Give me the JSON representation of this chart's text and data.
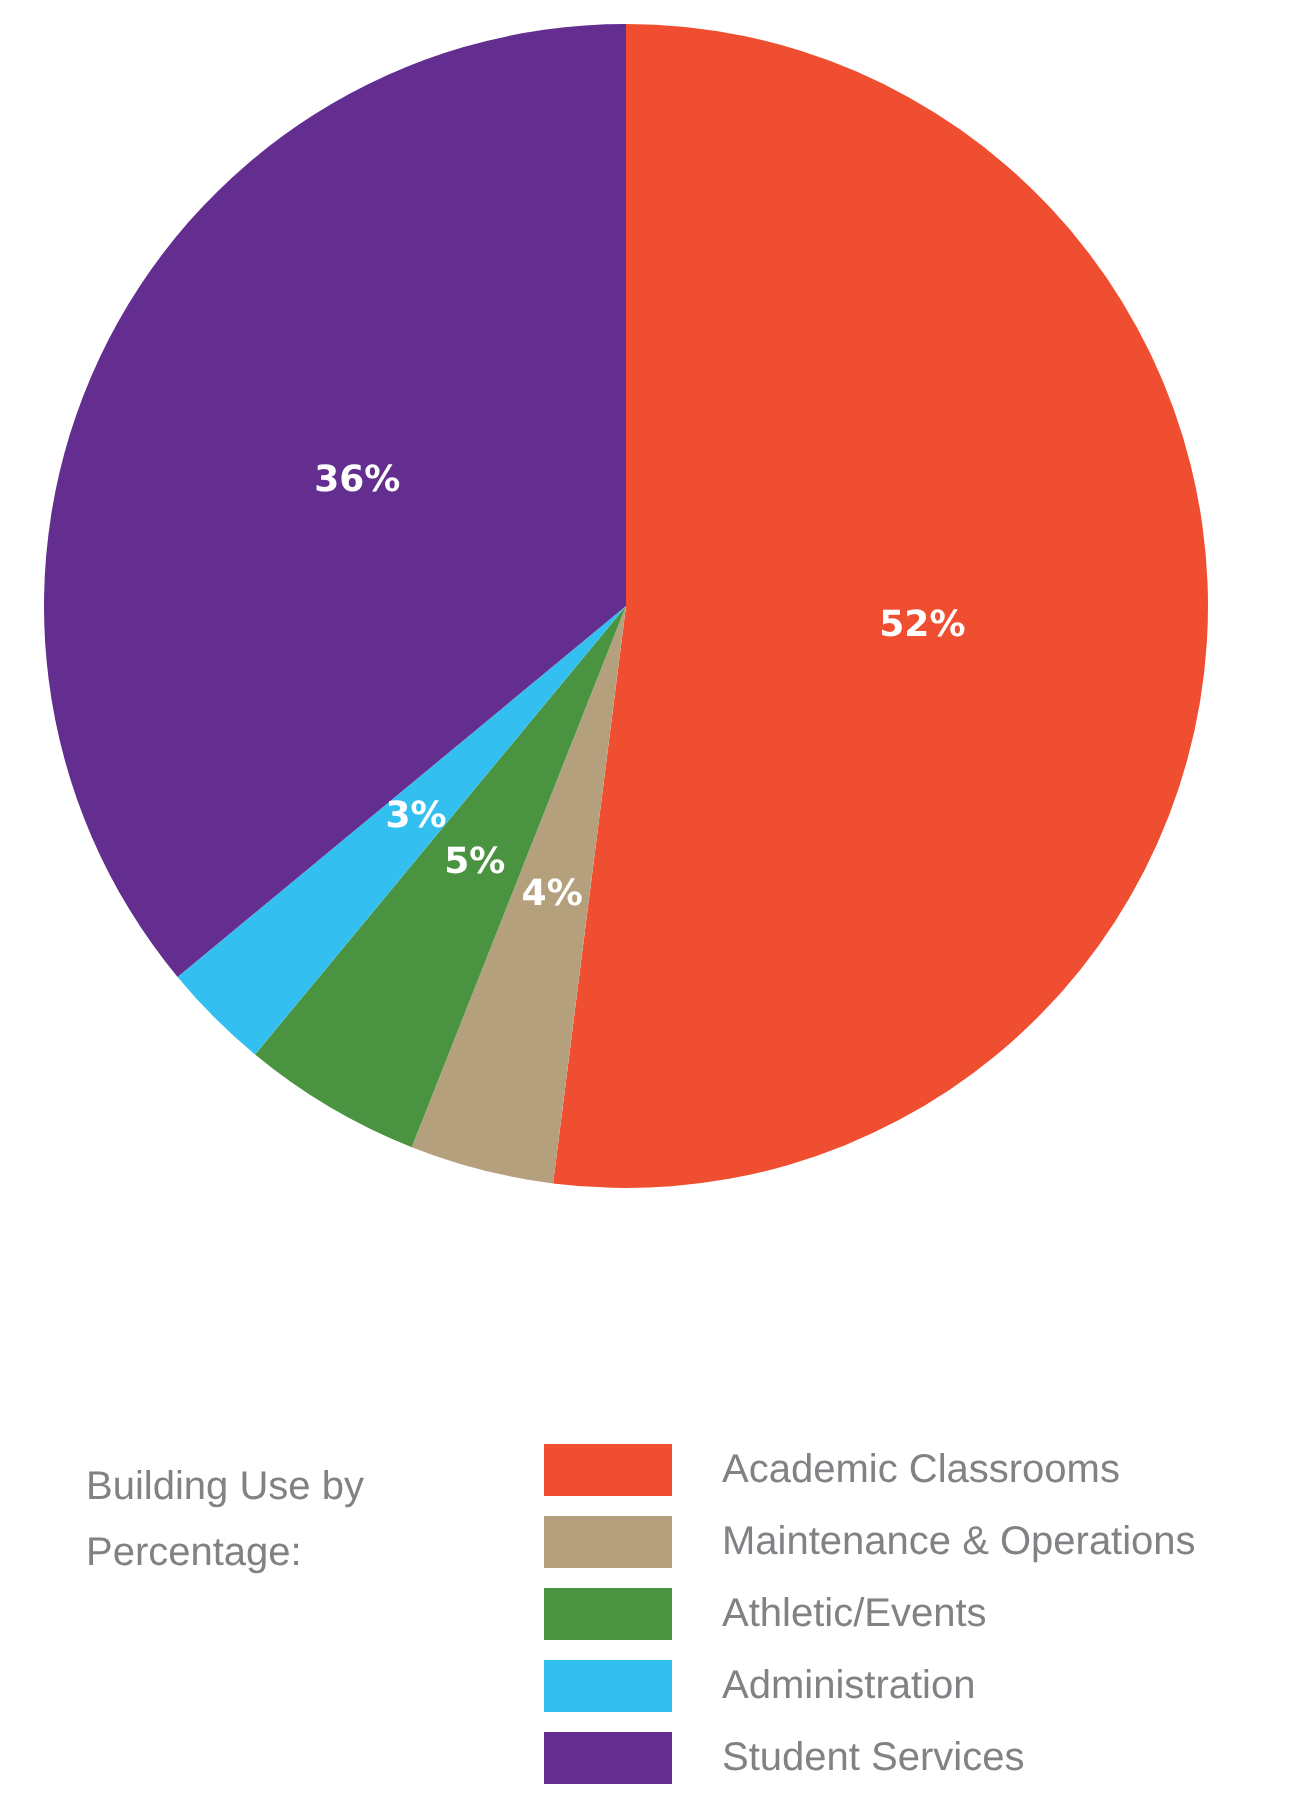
{
  "chart_data": {
    "type": "pie",
    "legend_title": "Building Use by Percentage:",
    "legend": "bottom",
    "value_labels": [
      "52%",
      "4%",
      "5%",
      "3%",
      "36%"
    ],
    "categories": [
      "Academic Classrooms",
      "Maintenance & Operations",
      "Athletic/Events",
      "Administration",
      "Student Services"
    ],
    "values": [
      52,
      4,
      5,
      3,
      36
    ],
    "colors": [
      "#f04e30",
      "#b5a07e",
      "#4a9340",
      "#33bfef",
      "#632e8f"
    ]
  }
}
